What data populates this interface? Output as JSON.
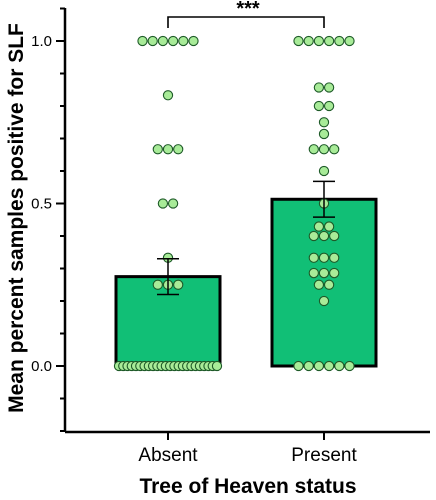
{
  "chart_data": {
    "type": "bar",
    "categories": [
      "Absent",
      "Present"
    ],
    "values": [
      0.275,
      0.513
    ],
    "error": [
      0.055,
      0.055
    ],
    "xlabel": "Tree of Heaven status",
    "ylabel": "Mean percent samples positive for SLF",
    "ylim": [
      -0.2,
      1.1
    ],
    "yticks": [
      "0.0",
      "0.5",
      "1.0"
    ],
    "significance": "***",
    "bar_color": "#11bf76",
    "point_color": "#a8eb98",
    "points": [
      {
        "category": "Absent",
        "values": [
          1,
          1,
          1,
          1,
          1,
          1,
          0.833,
          0.667,
          0.667,
          0.667,
          0.5,
          0.5,
          0.333,
          0.25,
          0.25,
          0.25,
          0,
          0,
          0,
          0,
          0,
          0,
          0,
          0,
          0,
          0,
          0,
          0,
          0,
          0,
          0,
          0,
          0,
          0,
          0,
          0,
          0,
          0,
          0,
          0
        ]
      },
      {
        "category": "Present",
        "values": [
          1,
          1,
          1,
          1,
          1,
          1,
          0.857,
          0.857,
          0.8,
          0.8,
          0.75,
          0.714,
          0.667,
          0.667,
          0.667,
          0.6,
          0.5,
          0.429,
          0.429,
          0.4,
          0.4,
          0.4,
          0.333,
          0.333,
          0.333,
          0.286,
          0.286,
          0.286,
          0.25,
          0.25,
          0.2,
          0,
          0,
          0,
          0,
          0,
          0
        ]
      }
    ]
  }
}
